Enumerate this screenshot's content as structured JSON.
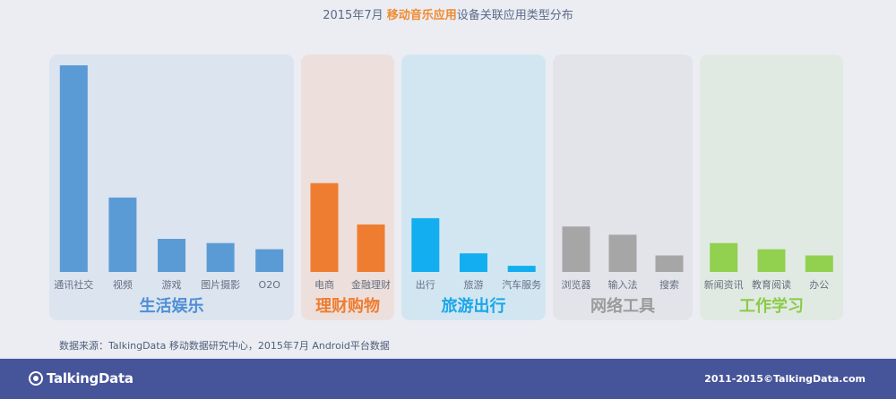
{
  "header": {
    "title_prefix": "2015年7月 ",
    "title_highlight": "移动音乐应用",
    "title_suffix": "设备关联应用类型分布"
  },
  "chart_data": {
    "type": "bar",
    "title": "2015年7月 移动音乐应用设备关联应用类型分布",
    "ylim": [
      0,
      100
    ],
    "grid": false,
    "groups": [
      {
        "name": "生活娱乐",
        "color": "#5b9bd5",
        "bg": "#dbe4ef",
        "name_color": "#4f8fd6",
        "categories": [
          "通讯社交",
          "视频",
          "游戏",
          "图片摄影",
          "O2O"
        ],
        "values": [
          100,
          36,
          16,
          14,
          11
        ]
      },
      {
        "name": "理财购物",
        "color": "#ef7d31",
        "bg": "#ede0dc",
        "name_color": "#ef7d31",
        "categories": [
          "电商",
          "金融理财"
        ],
        "values": [
          43,
          23
        ]
      },
      {
        "name": "旅游出行",
        "color": "#13aef0",
        "bg": "#d2e6f2",
        "name_color": "#1aa7e8",
        "categories": [
          "出行",
          "旅游",
          "汽车服务"
        ],
        "values": [
          26,
          9,
          3
        ]
      },
      {
        "name": "网络工具",
        "color": "#a6a6a6",
        "bg": "#e2e4e9",
        "name_color": "#9b9b9b",
        "categories": [
          "浏览器",
          "输入法",
          "搜索"
        ],
        "values": [
          22,
          18,
          8
        ]
      },
      {
        "name": "工作学习",
        "color": "#92d050",
        "bg": "#e1eae2",
        "name_color": "#8acb4a",
        "categories": [
          "新闻资讯",
          "教育阅读",
          "办公"
        ],
        "values": [
          14,
          11,
          8
        ]
      }
    ]
  },
  "source": "数据来源：TalkingData 移动数据研究中心，2015年7月 Android平台数据",
  "footer": {
    "logo": "TalkingData",
    "copyright": "2011-2015©TalkingData.com"
  },
  "colors": {
    "footer_bg": "#46549a",
    "page_bg": "#ebedf2",
    "highlight": "#f28a30"
  }
}
